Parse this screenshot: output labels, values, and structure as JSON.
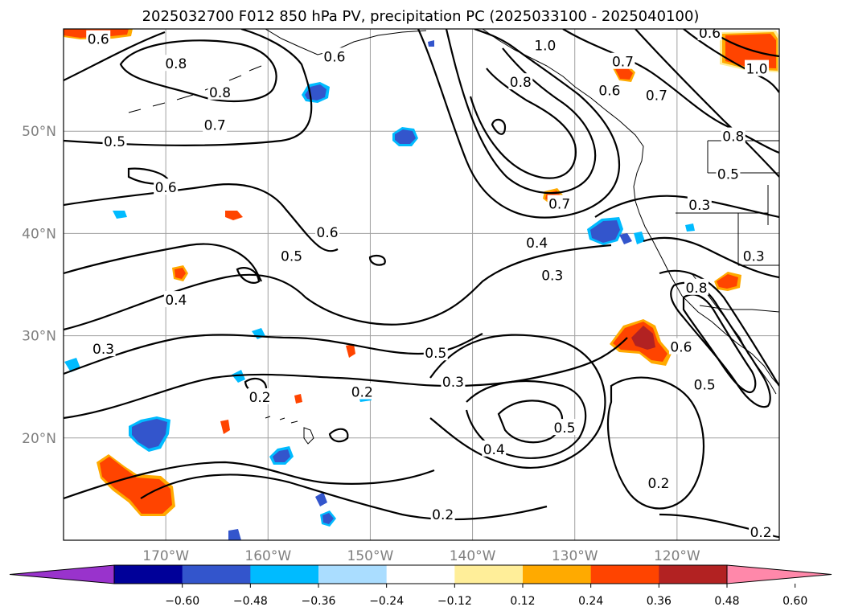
{
  "title": "2025032700 F012 850 hPa PV, precipitation PC (2025033100 - 2025040100)",
  "map": {
    "lon_range": [
      -180,
      -110
    ],
    "lat_range": [
      10,
      60
    ],
    "lon_ticks": [
      {
        "value": -170,
        "label": "170°W"
      },
      {
        "value": -160,
        "label": "160°W"
      },
      {
        "value": -150,
        "label": "150°W"
      },
      {
        "value": -140,
        "label": "140°W"
      },
      {
        "value": -130,
        "label": "130°W"
      },
      {
        "value": -120,
        "label": "120°W"
      }
    ],
    "lat_ticks": [
      {
        "value": 50,
        "label": "50°N"
      },
      {
        "value": 40,
        "label": "40°N"
      },
      {
        "value": 30,
        "label": "30°N"
      },
      {
        "value": 20,
        "label": "20°N"
      }
    ],
    "gridlines": true
  },
  "colorbar": {
    "orientation": "horizontal",
    "extend": "both",
    "colors": [
      "#9933cc",
      "#000099",
      "#3355cc",
      "#00bbff",
      "#aaddff",
      "#ffffff",
      "#ffee99",
      "#ffaa00",
      "#ff4400",
      "#b22222",
      "#ff88aa"
    ],
    "tick_labels": [
      "−0.60",
      "−0.48",
      "−0.36",
      "−0.24",
      "−0.12",
      "0.12",
      "0.24",
      "0.36",
      "0.48",
      "0.60"
    ]
  },
  "contour_labels": [
    {
      "text": "0.6",
      "lon": -176.6,
      "lat": 59.0
    },
    {
      "text": "0.8",
      "lon": -169.0,
      "lat": 56.6
    },
    {
      "text": "0.6",
      "lon": -153.5,
      "lat": 57.3
    },
    {
      "text": "0.8",
      "lon": -164.7,
      "lat": 53.8
    },
    {
      "text": "0.7",
      "lon": -165.2,
      "lat": 50.6
    },
    {
      "text": "0.5",
      "lon": -175.0,
      "lat": 49.0
    },
    {
      "text": "0.6",
      "lon": -170.0,
      "lat": 44.5
    },
    {
      "text": "0.6",
      "lon": -154.2,
      "lat": 40.1
    },
    {
      "text": "0.5",
      "lon": -157.7,
      "lat": 37.8
    },
    {
      "text": "0.4",
      "lon": -169.0,
      "lat": 33.5
    },
    {
      "text": "0.3",
      "lon": -176.1,
      "lat": 28.7
    },
    {
      "text": "0.2",
      "lon": -160.8,
      "lat": 24.0
    },
    {
      "text": "0.2",
      "lon": -150.8,
      "lat": 24.5
    },
    {
      "text": "0.5",
      "lon": -143.6,
      "lat": 28.3
    },
    {
      "text": "0.3",
      "lon": -141.9,
      "lat": 25.5
    },
    {
      "text": "0.8",
      "lon": -135.3,
      "lat": 54.8
    },
    {
      "text": "1.0",
      "lon": -132.9,
      "lat": 58.4
    },
    {
      "text": "0.6",
      "lon": -126.6,
      "lat": 54.0
    },
    {
      "text": "0.7",
      "lon": -131.5,
      "lat": 42.9
    },
    {
      "text": "0.4",
      "lon": -133.7,
      "lat": 39.1
    },
    {
      "text": "0.3",
      "lon": -132.2,
      "lat": 35.9
    },
    {
      "text": "0.5",
      "lon": -131.0,
      "lat": 21.0
    },
    {
      "text": "0.4",
      "lon": -137.9,
      "lat": 18.9
    },
    {
      "text": "0.2",
      "lon": -142.9,
      "lat": 12.5
    },
    {
      "text": "0.2",
      "lon": -121.8,
      "lat": 15.6
    },
    {
      "text": "0.6",
      "lon": -116.8,
      "lat": 59.6
    },
    {
      "text": "1.0",
      "lon": -112.2,
      "lat": 56.1
    },
    {
      "text": "0.7",
      "lon": -125.3,
      "lat": 56.8
    },
    {
      "text": "0.7",
      "lon": -122.0,
      "lat": 53.5
    },
    {
      "text": "0.8",
      "lon": -114.5,
      "lat": 49.5
    },
    {
      "text": "0.5",
      "lon": -115.0,
      "lat": 45.8
    },
    {
      "text": "0.3",
      "lon": -117.8,
      "lat": 42.8
    },
    {
      "text": "0.3",
      "lon": -112.5,
      "lat": 37.8
    },
    {
      "text": "0.8",
      "lon": -118.1,
      "lat": 34.7
    },
    {
      "text": "0.6",
      "lon": -119.6,
      "lat": 28.9
    },
    {
      "text": "0.5",
      "lon": -117.3,
      "lat": 25.2
    },
    {
      "text": "0.2",
      "lon": -111.8,
      "lat": 10.8
    }
  ]
}
